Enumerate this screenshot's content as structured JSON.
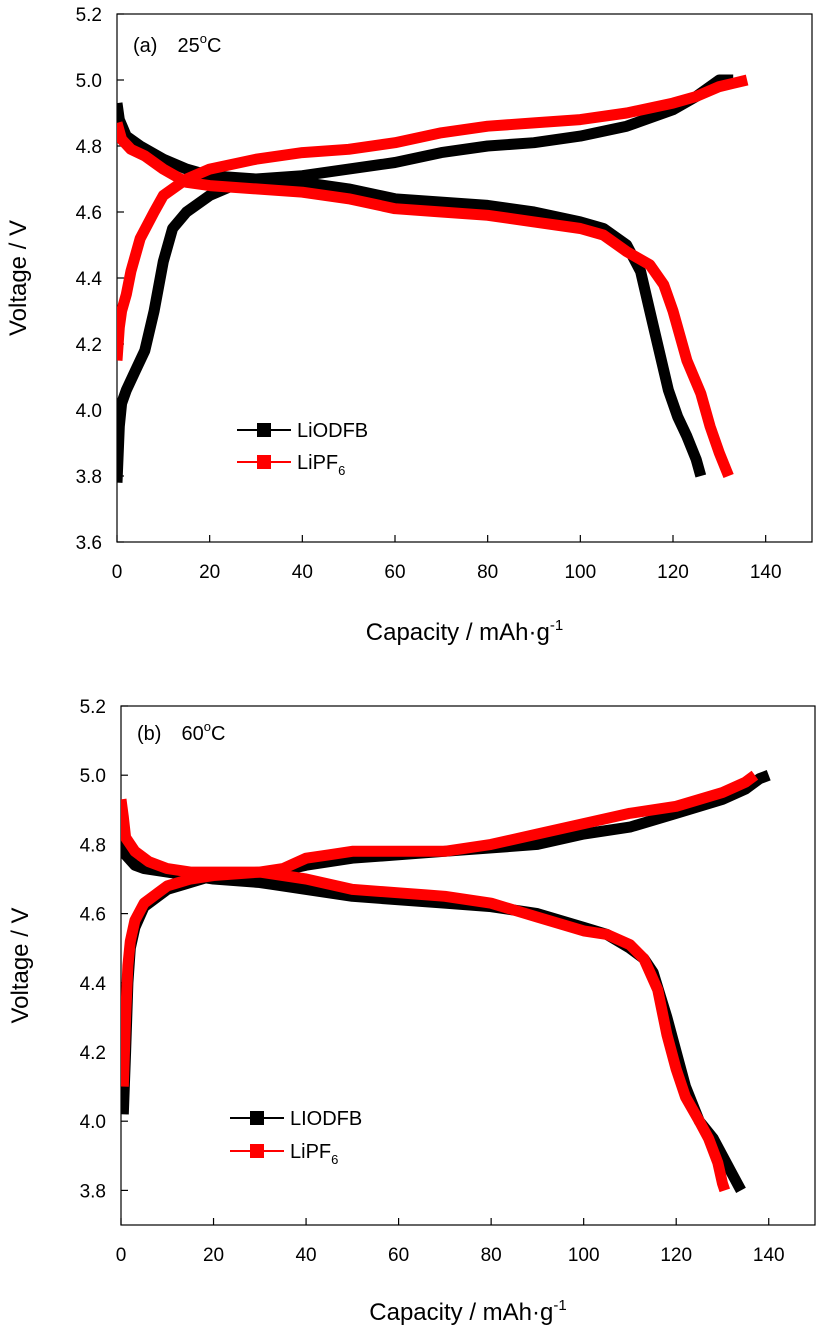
{
  "chart_data": [
    {
      "type": "line",
      "panel_label": "(a)",
      "temperature": "25",
      "temperature_sup": "o",
      "temperature_unit": "C",
      "xlabel": "Capacity / mAh·g",
      "xlabel_sup": "-1",
      "ylabel": "Voltage / V",
      "xlim": [
        0,
        150
      ],
      "ylim": [
        3.6,
        5.2
      ],
      "x_ticks": [
        0,
        20,
        40,
        60,
        80,
        100,
        120,
        140
      ],
      "y_ticks": [
        3.6,
        3.8,
        4.0,
        4.2,
        4.4,
        4.6,
        4.8,
        5.0,
        5.2
      ],
      "x_tick_labels": [
        "0",
        "20",
        "40",
        "60",
        "80",
        "100",
        "120",
        "140"
      ],
      "y_tick_labels": [
        "3.6",
        "3.8",
        "4.0",
        "4.2",
        "4.4",
        "4.6",
        "4.8",
        "5.0",
        "5.2"
      ],
      "legend_position": "lower-left",
      "legend": [
        {
          "base": "LiODFB",
          "sub": "",
          "color": "#000000"
        },
        {
          "base": "LiPF",
          "sub": "6",
          "color": "#ff0000"
        }
      ],
      "series": [
        {
          "name": "LiODFB",
          "color": "#000000",
          "charge": [
            [
              0,
              3.78
            ],
            [
              0.5,
              3.95
            ],
            [
              1,
              4.02
            ],
            [
              2,
              4.06
            ],
            [
              4,
              4.12
            ],
            [
              6,
              4.18
            ],
            [
              8,
              4.3
            ],
            [
              10,
              4.45
            ],
            [
              12,
              4.55
            ],
            [
              15,
              4.6
            ],
            [
              20,
              4.65
            ],
            [
              25,
              4.68
            ],
            [
              30,
              4.7
            ],
            [
              40,
              4.71
            ],
            [
              50,
              4.73
            ],
            [
              60,
              4.75
            ],
            [
              70,
              4.78
            ],
            [
              80,
              4.8
            ],
            [
              90,
              4.81
            ],
            [
              100,
              4.83
            ],
            [
              110,
              4.86
            ],
            [
              120,
              4.91
            ],
            [
              125,
              4.95
            ],
            [
              130,
              5.0
            ],
            [
              133,
              5.0
            ]
          ],
          "discharge": [
            [
              0,
              4.93
            ],
            [
              0.5,
              4.88
            ],
            [
              2,
              4.83
            ],
            [
              5,
              4.8
            ],
            [
              10,
              4.76
            ],
            [
              15,
              4.73
            ],
            [
              20,
              4.71
            ],
            [
              30,
              4.7
            ],
            [
              40,
              4.69
            ],
            [
              50,
              4.67
            ],
            [
              60,
              4.64
            ],
            [
              70,
              4.63
            ],
            [
              80,
              4.62
            ],
            [
              90,
              4.6
            ],
            [
              100,
              4.57
            ],
            [
              105,
              4.55
            ],
            [
              110,
              4.5
            ],
            [
              113,
              4.42
            ],
            [
              115,
              4.3
            ],
            [
              117,
              4.18
            ],
            [
              119,
              4.06
            ],
            [
              121,
              3.98
            ],
            [
              123,
              3.92
            ],
            [
              125,
              3.85
            ],
            [
              126,
              3.8
            ]
          ]
        },
        {
          "name": "LiPF6",
          "color": "#ff0000",
          "charge": [
            [
              0,
              4.15
            ],
            [
              0.5,
              4.25
            ],
            [
              1,
              4.3
            ],
            [
              2,
              4.35
            ],
            [
              3,
              4.42
            ],
            [
              5,
              4.52
            ],
            [
              8,
              4.6
            ],
            [
              10,
              4.65
            ],
            [
              15,
              4.7
            ],
            [
              20,
              4.73
            ],
            [
              30,
              4.76
            ],
            [
              40,
              4.78
            ],
            [
              50,
              4.79
            ],
            [
              60,
              4.81
            ],
            [
              70,
              4.84
            ],
            [
              80,
              4.86
            ],
            [
              90,
              4.87
            ],
            [
              100,
              4.88
            ],
            [
              110,
              4.9
            ],
            [
              120,
              4.93
            ],
            [
              125,
              4.95
            ],
            [
              130,
              4.98
            ],
            [
              133,
              4.99
            ],
            [
              136,
              5.0
            ]
          ],
          "discharge": [
            [
              0,
              4.87
            ],
            [
              1,
              4.82
            ],
            [
              3,
              4.79
            ],
            [
              6,
              4.77
            ],
            [
              10,
              4.73
            ],
            [
              15,
              4.69
            ],
            [
              20,
              4.68
            ],
            [
              30,
              4.67
            ],
            [
              40,
              4.66
            ],
            [
              50,
              4.64
            ],
            [
              60,
              4.61
            ],
            [
              70,
              4.6
            ],
            [
              80,
              4.59
            ],
            [
              90,
              4.57
            ],
            [
              100,
              4.55
            ],
            [
              105,
              4.53
            ],
            [
              110,
              4.48
            ],
            [
              115,
              4.44
            ],
            [
              118,
              4.38
            ],
            [
              120,
              4.3
            ],
            [
              123,
              4.15
            ],
            [
              126,
              4.05
            ],
            [
              128,
              3.95
            ],
            [
              130,
              3.87
            ],
            [
              132,
              3.8
            ]
          ]
        }
      ]
    },
    {
      "type": "line",
      "panel_label": "(b)",
      "temperature": "60",
      "temperature_sup": "o",
      "temperature_unit": "C",
      "xlabel": "Capacity / mAh·g",
      "xlabel_sup": "-1",
      "ylabel": "Voltage / V",
      "xlim": [
        0,
        150
      ],
      "ylim": [
        3.7,
        5.2
      ],
      "x_ticks": [
        0,
        20,
        40,
        60,
        80,
        100,
        120,
        140
      ],
      "y_ticks": [
        3.8,
        4.0,
        4.2,
        4.4,
        4.6,
        4.8,
        5.0,
        5.2
      ],
      "x_tick_labels": [
        "0",
        "20",
        "40",
        "60",
        "80",
        "100",
        "120",
        "140"
      ],
      "y_tick_labels": [
        "3.8",
        "4.0",
        "4.2",
        "4.4",
        "4.6",
        "4.8",
        "5.0",
        "5.2"
      ],
      "legend_position": "lower-left",
      "legend": [
        {
          "base": "LIODFB",
          "sub": "",
          "color": "#000000"
        },
        {
          "base": "LiPF",
          "sub": "6",
          "color": "#ff0000"
        }
      ],
      "series": [
        {
          "name": "LIODFB",
          "color": "#000000",
          "charge": [
            [
              0.5,
              4.02
            ],
            [
              1,
              4.2
            ],
            [
              1.5,
              4.4
            ],
            [
              2,
              4.5
            ],
            [
              3,
              4.56
            ],
            [
              5,
              4.62
            ],
            [
              8,
              4.65
            ],
            [
              10,
              4.67
            ],
            [
              15,
              4.69
            ],
            [
              20,
              4.71
            ],
            [
              30,
              4.71
            ],
            [
              40,
              4.74
            ],
            [
              50,
              4.76
            ],
            [
              60,
              4.77
            ],
            [
              70,
              4.78
            ],
            [
              80,
              4.79
            ],
            [
              90,
              4.8
            ],
            [
              100,
              4.83
            ],
            [
              110,
              4.85
            ],
            [
              120,
              4.89
            ],
            [
              130,
              4.93
            ],
            [
              135,
              4.96
            ],
            [
              138,
              4.99
            ],
            [
              140,
              5.0
            ]
          ],
          "discharge": [
            [
              0,
              4.83
            ],
            [
              1,
              4.77
            ],
            [
              3,
              4.74
            ],
            [
              5,
              4.73
            ],
            [
              10,
              4.72
            ],
            [
              20,
              4.7
            ],
            [
              30,
              4.69
            ],
            [
              40,
              4.67
            ],
            [
              50,
              4.65
            ],
            [
              60,
              4.64
            ],
            [
              70,
              4.63
            ],
            [
              80,
              4.62
            ],
            [
              90,
              4.6
            ],
            [
              100,
              4.56
            ],
            [
              105,
              4.54
            ],
            [
              110,
              4.5
            ],
            [
              113,
              4.47
            ],
            [
              115,
              4.43
            ],
            [
              118,
              4.3
            ],
            [
              120,
              4.2
            ],
            [
              122,
              4.1
            ],
            [
              125,
              4.0
            ],
            [
              128,
              3.95
            ],
            [
              130,
              3.9
            ],
            [
              132,
              3.85
            ],
            [
              134,
              3.8
            ]
          ]
        },
        {
          "name": "LiPF6",
          "color": "#ff0000",
          "charge": [
            [
              0.5,
              4.1
            ],
            [
              1,
              4.3
            ],
            [
              1.5,
              4.45
            ],
            [
              2,
              4.52
            ],
            [
              3,
              4.58
            ],
            [
              5,
              4.63
            ],
            [
              8,
              4.66
            ],
            [
              10,
              4.68
            ],
            [
              15,
              4.7
            ],
            [
              20,
              4.71
            ],
            [
              30,
              4.72
            ],
            [
              35,
              4.73
            ],
            [
              40,
              4.76
            ],
            [
              45,
              4.77
            ],
            [
              50,
              4.78
            ],
            [
              60,
              4.78
            ],
            [
              70,
              4.78
            ],
            [
              80,
              4.8
            ],
            [
              90,
              4.83
            ],
            [
              100,
              4.86
            ],
            [
              110,
              4.89
            ],
            [
              120,
              4.91
            ],
            [
              130,
              4.95
            ],
            [
              135,
              4.98
            ],
            [
              137,
              5.0
            ]
          ],
          "discharge": [
            [
              0,
              4.93
            ],
            [
              0.5,
              4.88
            ],
            [
              1,
              4.82
            ],
            [
              3,
              4.78
            ],
            [
              6,
              4.75
            ],
            [
              10,
              4.73
            ],
            [
              15,
              4.72
            ],
            [
              20,
              4.72
            ],
            [
              30,
              4.72
            ],
            [
              40,
              4.7
            ],
            [
              50,
              4.67
            ],
            [
              60,
              4.66
            ],
            [
              70,
              4.65
            ],
            [
              80,
              4.63
            ],
            [
              90,
              4.59
            ],
            [
              100,
              4.55
            ],
            [
              105,
              4.54
            ],
            [
              110,
              4.51
            ],
            [
              113,
              4.47
            ],
            [
              116,
              4.38
            ],
            [
              118,
              4.25
            ],
            [
              120,
              4.15
            ],
            [
              122,
              4.07
            ],
            [
              125,
              4.0
            ],
            [
              127,
              3.95
            ],
            [
              129,
              3.88
            ],
            [
              130,
              3.82
            ],
            [
              130.5,
              3.8
            ]
          ]
        }
      ]
    }
  ]
}
